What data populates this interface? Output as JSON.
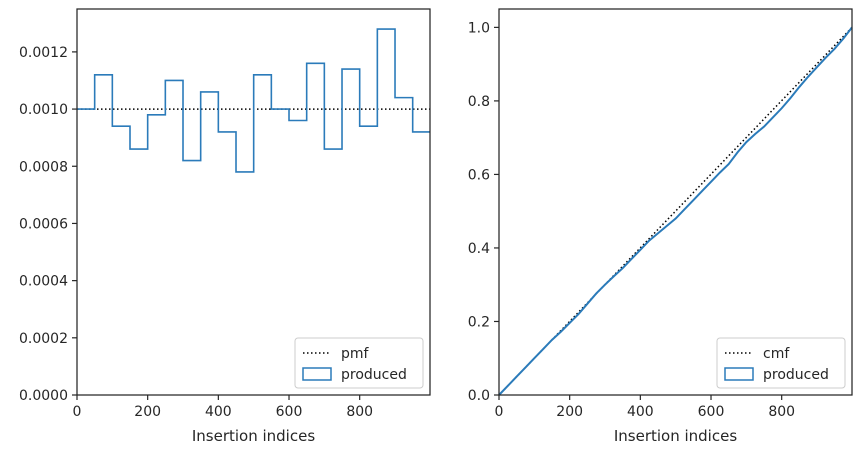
{
  "chart_data": [
    {
      "type": "histogram-step",
      "xlabel": "Insertion indices",
      "ylabel": "",
      "xlim": [
        0,
        999
      ],
      "ylim": [
        0,
        0.00135
      ],
      "xticks": [
        0,
        200,
        400,
        600,
        800
      ],
      "yticks": [
        0.0,
        0.0002,
        0.0004,
        0.0006,
        0.0008,
        0.001,
        0.0012
      ],
      "ytick_labels": [
        "0.0000",
        "0.0002",
        "0.0004",
        "0.0006",
        "0.0008",
        "0.0010",
        "0.0012"
      ],
      "legend": {
        "position": "lower-right",
        "entries": [
          "pmf",
          "produced"
        ]
      },
      "pmf": {
        "name": "pmf",
        "value": 0.001,
        "style": "dotted",
        "color": "#000000"
      },
      "produced": {
        "name": "produced",
        "color": "#2b7bba",
        "bin_edges": [
          0,
          50,
          100,
          150,
          200,
          250,
          300,
          350,
          400,
          450,
          500,
          550,
          600,
          650,
          700,
          750,
          800,
          850,
          900,
          950,
          999
        ],
        "values": [
          0.001,
          0.00112,
          0.00094,
          0.00086,
          0.00098,
          0.0011,
          0.00082,
          0.00106,
          0.00092,
          0.00078,
          0.00112,
          0.001,
          0.00096,
          0.00116,
          0.00086,
          0.00114,
          0.00094,
          0.00128,
          0.00104,
          0.00092
        ]
      }
    },
    {
      "type": "line",
      "xlabel": "Insertion indices",
      "ylabel": "",
      "xlim": [
        0,
        999
      ],
      "ylim": [
        0,
        1.05
      ],
      "xticks": [
        0,
        200,
        400,
        600,
        800
      ],
      "yticks": [
        0.0,
        0.2,
        0.4,
        0.6,
        0.8,
        1.0
      ],
      "ytick_labels": [
        "0.0",
        "0.2",
        "0.4",
        "0.6",
        "0.8",
        "1.0"
      ],
      "legend": {
        "position": "lower-right",
        "entries": [
          "cmf",
          "produced"
        ]
      },
      "cmf": {
        "name": "cmf",
        "x": [
          0,
          999
        ],
        "y": [
          0.0,
          1.0
        ],
        "style": "dotted",
        "color": "#000000"
      },
      "produced": {
        "name": "produced",
        "color": "#2b7bba",
        "x": [
          0,
          25,
          50,
          75,
          100,
          125,
          150,
          175,
          200,
          225,
          250,
          275,
          300,
          325,
          350,
          375,
          400,
          425,
          450,
          475,
          500,
          525,
          550,
          575,
          600,
          625,
          650,
          675,
          700,
          725,
          750,
          775,
          800,
          825,
          850,
          875,
          900,
          925,
          950,
          975,
          999
        ],
        "y": [
          0.0,
          0.025,
          0.05,
          0.075,
          0.1,
          0.125,
          0.15,
          0.172,
          0.196,
          0.22,
          0.248,
          0.276,
          0.3,
          0.323,
          0.345,
          0.37,
          0.395,
          0.42,
          0.44,
          0.46,
          0.48,
          0.505,
          0.53,
          0.555,
          0.58,
          0.605,
          0.628,
          0.66,
          0.688,
          0.71,
          0.73,
          0.755,
          0.78,
          0.808,
          0.838,
          0.866,
          0.892,
          0.918,
          0.942,
          0.97,
          1.0
        ]
      }
    }
  ]
}
